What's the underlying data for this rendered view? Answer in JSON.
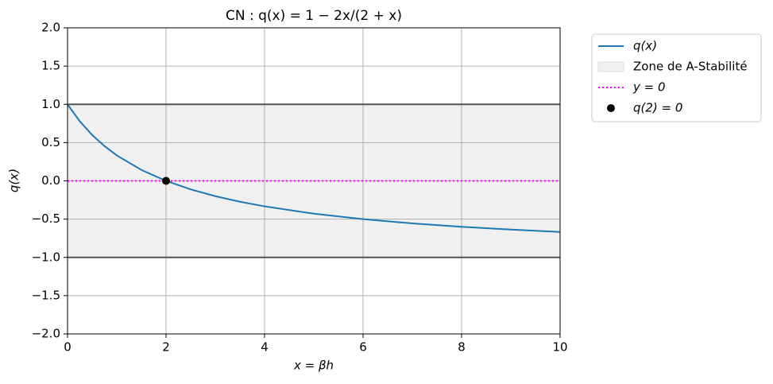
{
  "chart_data": {
    "type": "line",
    "title": "CN : q(x) = 1 − 2x/(2 + x)",
    "xlabel": "x = βh",
    "ylabel": "q(x)",
    "xlim": [
      0,
      10
    ],
    "ylim": [
      -2,
      2
    ],
    "xticks": [
      0,
      2,
      4,
      6,
      8,
      10
    ],
    "yticks": [
      {
        "value": -2,
        "label": "−2.0"
      },
      {
        "value": -1.5,
        "label": "−1.5"
      },
      {
        "value": -1,
        "label": "−1.0"
      },
      {
        "value": -0.5,
        "label": "−0.5"
      },
      {
        "value": 0,
        "label": "0.0"
      },
      0.5,
      {
        "value": 1,
        "label": "1.0"
      },
      1.5,
      {
        "value": 2,
        "label": "2.0"
      }
    ],
    "grid": true,
    "legend": "outside-right",
    "series": [
      {
        "name": "q(x)",
        "color": "#1f77b4",
        "x": [
          0,
          0.25,
          0.5,
          0.75,
          1,
          1.5,
          2,
          2.5,
          3,
          3.5,
          4,
          5,
          6,
          7,
          8,
          9,
          10
        ],
        "values": [
          1,
          0.778,
          0.6,
          0.455,
          0.333,
          0.143,
          0,
          -0.111,
          -0.2,
          -0.273,
          -0.333,
          -0.429,
          -0.5,
          -0.556,
          -0.6,
          -0.636,
          -0.667
        ]
      }
    ],
    "band": {
      "name": "Zone de A-Stabilité",
      "color": "#f0f0f0",
      "edge_color": "#555555",
      "lower": -1,
      "upper": 1
    },
    "hline": {
      "name": "y = 0",
      "color": "#ff00ff",
      "value": 0
    },
    "point": {
      "name": "q(2) = 0",
      "color": "#000000",
      "x": 2,
      "y": 0
    }
  }
}
